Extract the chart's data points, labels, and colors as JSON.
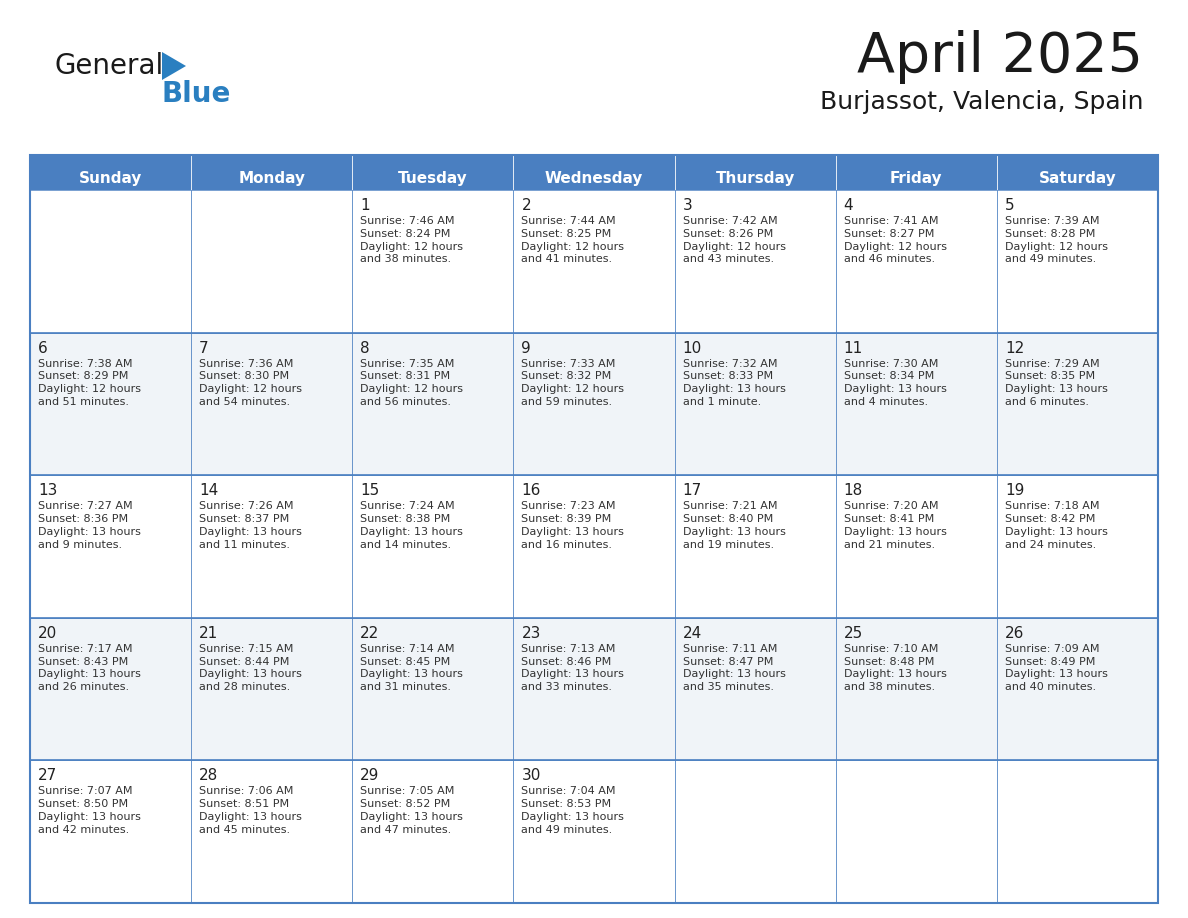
{
  "title": "April 2025",
  "subtitle": "Burjassot, Valencia, Spain",
  "header_bg": "#4a7fc1",
  "header_text_color": "#FFFFFF",
  "border_color": "#4a7fc1",
  "row_border_color": "#4a7fc1",
  "day_names": [
    "Sunday",
    "Monday",
    "Tuesday",
    "Wednesday",
    "Thursday",
    "Friday",
    "Saturday"
  ],
  "title_color": "#1a1a1a",
  "subtitle_color": "#1a1a1a",
  "cell_text_color": "#333333",
  "day_num_color": "#222222",
  "logo_general_color": "#1a1a1a",
  "logo_blue_color": "#2a7fc0",
  "logo_triangle_color": "#2a7fc0",
  "cell_bg_odd": "#FFFFFF",
  "cell_bg_even": "#F0F4F8",
  "weeks": [
    [
      {
        "day": "",
        "info": ""
      },
      {
        "day": "",
        "info": ""
      },
      {
        "day": "1",
        "info": "Sunrise: 7:46 AM\nSunset: 8:24 PM\nDaylight: 12 hours\nand 38 minutes."
      },
      {
        "day": "2",
        "info": "Sunrise: 7:44 AM\nSunset: 8:25 PM\nDaylight: 12 hours\nand 41 minutes."
      },
      {
        "day": "3",
        "info": "Sunrise: 7:42 AM\nSunset: 8:26 PM\nDaylight: 12 hours\nand 43 minutes."
      },
      {
        "day": "4",
        "info": "Sunrise: 7:41 AM\nSunset: 8:27 PM\nDaylight: 12 hours\nand 46 minutes."
      },
      {
        "day": "5",
        "info": "Sunrise: 7:39 AM\nSunset: 8:28 PM\nDaylight: 12 hours\nand 49 minutes."
      }
    ],
    [
      {
        "day": "6",
        "info": "Sunrise: 7:38 AM\nSunset: 8:29 PM\nDaylight: 12 hours\nand 51 minutes."
      },
      {
        "day": "7",
        "info": "Sunrise: 7:36 AM\nSunset: 8:30 PM\nDaylight: 12 hours\nand 54 minutes."
      },
      {
        "day": "8",
        "info": "Sunrise: 7:35 AM\nSunset: 8:31 PM\nDaylight: 12 hours\nand 56 minutes."
      },
      {
        "day": "9",
        "info": "Sunrise: 7:33 AM\nSunset: 8:32 PM\nDaylight: 12 hours\nand 59 minutes."
      },
      {
        "day": "10",
        "info": "Sunrise: 7:32 AM\nSunset: 8:33 PM\nDaylight: 13 hours\nand 1 minute."
      },
      {
        "day": "11",
        "info": "Sunrise: 7:30 AM\nSunset: 8:34 PM\nDaylight: 13 hours\nand 4 minutes."
      },
      {
        "day": "12",
        "info": "Sunrise: 7:29 AM\nSunset: 8:35 PM\nDaylight: 13 hours\nand 6 minutes."
      }
    ],
    [
      {
        "day": "13",
        "info": "Sunrise: 7:27 AM\nSunset: 8:36 PM\nDaylight: 13 hours\nand 9 minutes."
      },
      {
        "day": "14",
        "info": "Sunrise: 7:26 AM\nSunset: 8:37 PM\nDaylight: 13 hours\nand 11 minutes."
      },
      {
        "day": "15",
        "info": "Sunrise: 7:24 AM\nSunset: 8:38 PM\nDaylight: 13 hours\nand 14 minutes."
      },
      {
        "day": "16",
        "info": "Sunrise: 7:23 AM\nSunset: 8:39 PM\nDaylight: 13 hours\nand 16 minutes."
      },
      {
        "day": "17",
        "info": "Sunrise: 7:21 AM\nSunset: 8:40 PM\nDaylight: 13 hours\nand 19 minutes."
      },
      {
        "day": "18",
        "info": "Sunrise: 7:20 AM\nSunset: 8:41 PM\nDaylight: 13 hours\nand 21 minutes."
      },
      {
        "day": "19",
        "info": "Sunrise: 7:18 AM\nSunset: 8:42 PM\nDaylight: 13 hours\nand 24 minutes."
      }
    ],
    [
      {
        "day": "20",
        "info": "Sunrise: 7:17 AM\nSunset: 8:43 PM\nDaylight: 13 hours\nand 26 minutes."
      },
      {
        "day": "21",
        "info": "Sunrise: 7:15 AM\nSunset: 8:44 PM\nDaylight: 13 hours\nand 28 minutes."
      },
      {
        "day": "22",
        "info": "Sunrise: 7:14 AM\nSunset: 8:45 PM\nDaylight: 13 hours\nand 31 minutes."
      },
      {
        "day": "23",
        "info": "Sunrise: 7:13 AM\nSunset: 8:46 PM\nDaylight: 13 hours\nand 33 minutes."
      },
      {
        "day": "24",
        "info": "Sunrise: 7:11 AM\nSunset: 8:47 PM\nDaylight: 13 hours\nand 35 minutes."
      },
      {
        "day": "25",
        "info": "Sunrise: 7:10 AM\nSunset: 8:48 PM\nDaylight: 13 hours\nand 38 minutes."
      },
      {
        "day": "26",
        "info": "Sunrise: 7:09 AM\nSunset: 8:49 PM\nDaylight: 13 hours\nand 40 minutes."
      }
    ],
    [
      {
        "day": "27",
        "info": "Sunrise: 7:07 AM\nSunset: 8:50 PM\nDaylight: 13 hours\nand 42 minutes."
      },
      {
        "day": "28",
        "info": "Sunrise: 7:06 AM\nSunset: 8:51 PM\nDaylight: 13 hours\nand 45 minutes."
      },
      {
        "day": "29",
        "info": "Sunrise: 7:05 AM\nSunset: 8:52 PM\nDaylight: 13 hours\nand 47 minutes."
      },
      {
        "day": "30",
        "info": "Sunrise: 7:04 AM\nSunset: 8:53 PM\nDaylight: 13 hours\nand 49 minutes."
      },
      {
        "day": "",
        "info": ""
      },
      {
        "day": "",
        "info": ""
      },
      {
        "day": "",
        "info": ""
      }
    ]
  ]
}
